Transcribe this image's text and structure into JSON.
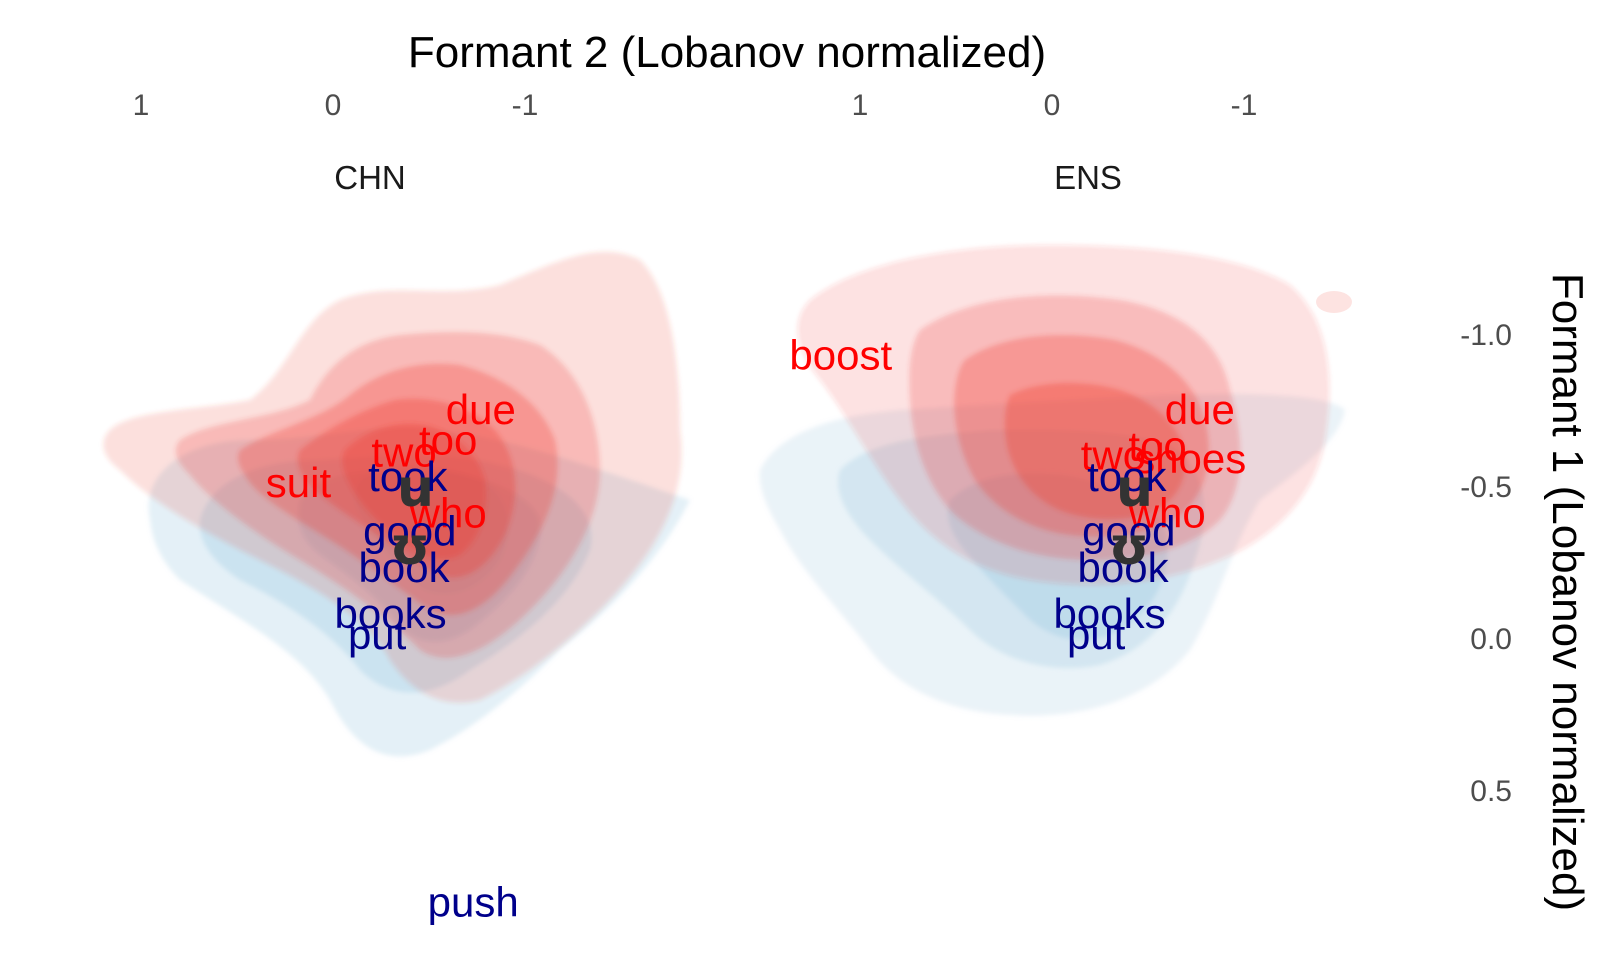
{
  "chart_data": {
    "type": "scatter",
    "xlabel": "Formant 2 (Lobanov normalized)",
    "ylabel": "Formant 1 (Lobanov normalized)",
    "x_axis": {
      "reversed": true,
      "position": "top",
      "ticks": [
        1,
        0,
        -1
      ],
      "tick_labels": [
        "1",
        "0",
        "-1"
      ]
    },
    "y_axis": {
      "reversed": true,
      "position": "right",
      "ticks": [
        -1.0,
        -0.5,
        0.0,
        0.5
      ],
      "tick_labels": [
        "-1.0",
        "-0.5",
        "0.0",
        "0.5"
      ]
    },
    "xlim": [
      1.5,
      -1.9
    ],
    "ylim": [
      -1.35,
      0.9
    ],
    "grid": false,
    "legend": "none",
    "colors": {
      "u_words": "#ff0000",
      "ʊ_words": "#00008b",
      "vowel_centroid": "#333333",
      "u_density": "#ef3b2c",
      "ʊ_density": "#9ecae1"
    },
    "panels": [
      {
        "strip": "CHN",
        "vowel_labels": [
          {
            "label": "u",
            "x": -0.43,
            "y": -0.48
          },
          {
            "label": "ʊ",
            "x": -0.4,
            "y": -0.29
          }
        ],
        "words": [
          {
            "text": "due",
            "group": "u",
            "x": -0.77,
            "y": -0.74
          },
          {
            "text": "too",
            "group": "u",
            "x": -0.6,
            "y": -0.64
          },
          {
            "text": "two",
            "group": "u",
            "x": -0.37,
            "y": -0.6
          },
          {
            "text": "suit",
            "group": "u",
            "x": 0.18,
            "y": -0.5
          },
          {
            "text": "who",
            "group": "u",
            "x": -0.6,
            "y": -0.4
          },
          {
            "text": "took",
            "group": "ʊ",
            "x": -0.39,
            "y": -0.52
          },
          {
            "text": "good",
            "group": "ʊ",
            "x": -0.4,
            "y": -0.34
          },
          {
            "text": "book",
            "group": "ʊ",
            "x": -0.37,
            "y": -0.22
          },
          {
            "text": "books",
            "group": "ʊ",
            "x": -0.3,
            "y": -0.07
          },
          {
            "text": "put",
            "group": "ʊ",
            "x": -0.23,
            "y": 0.0
          },
          {
            "text": "push",
            "group": "ʊ",
            "x": -0.73,
            "y": 0.88
          }
        ]
      },
      {
        "strip": "ENS",
        "vowel_labels": [
          {
            "label": "u",
            "x": -0.43,
            "y": -0.48
          },
          {
            "label": "ʊ",
            "x": -0.4,
            "y": -0.29
          }
        ],
        "words": [
          {
            "text": "boost",
            "group": "u",
            "x": 1.1,
            "y": -0.92
          },
          {
            "text": "due",
            "group": "u",
            "x": -0.77,
            "y": -0.74
          },
          {
            "text": "too",
            "group": "u",
            "x": -0.55,
            "y": -0.62
          },
          {
            "text": "two",
            "group": "u",
            "x": -0.32,
            "y": -0.59
          },
          {
            "text": "shoes",
            "group": "u",
            "x": -0.72,
            "y": -0.58
          },
          {
            "text": "who",
            "group": "u",
            "x": -0.6,
            "y": -0.4
          },
          {
            "text": "took",
            "group": "ʊ",
            "x": -0.39,
            "y": -0.52
          },
          {
            "text": "good",
            "group": "ʊ",
            "x": -0.4,
            "y": -0.34
          },
          {
            "text": "book",
            "group": "ʊ",
            "x": -0.37,
            "y": -0.22
          },
          {
            "text": "books",
            "group": "ʊ",
            "x": -0.3,
            "y": -0.07
          },
          {
            "text": "put",
            "group": "ʊ",
            "x": -0.23,
            "y": 0.0
          }
        ]
      }
    ]
  }
}
